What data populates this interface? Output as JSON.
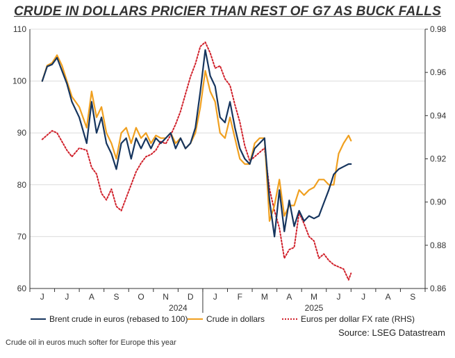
{
  "title": "CRUDE IN DOLLARS PRICIER THAN REST OF G7 AS BUCK FALLS",
  "source": "Source: LSEG Datastream",
  "caption": "Crude oil in euros much softer for Europe this year",
  "colors": {
    "euros": "#16355e",
    "dollars": "#f0a020",
    "fx": "#d0202a",
    "grid": "#dcdcdc",
    "axis": "#333333"
  },
  "chart_data": {
    "type": "line",
    "title": "CRUDE IN DOLLARS PRICIER THAN REST OF G7 AS BUCK FALLS",
    "x_months": [
      "J",
      "J",
      "A",
      "S",
      "O",
      "N",
      "D",
      "J",
      "F",
      "M",
      "A",
      "M",
      "J",
      "J",
      "A",
      "S"
    ],
    "x_years": [
      {
        "label": "2024",
        "month_index": 6
      },
      {
        "label": "2025",
        "month_index": 11.5
      }
    ],
    "y_left": {
      "min": 60,
      "max": 110,
      "ticks": [
        60,
        70,
        80,
        90,
        100,
        110
      ]
    },
    "y_right": {
      "min": 0.86,
      "max": 0.98,
      "ticks": [
        "0.86",
        "0.88",
        "0.90",
        "0.92",
        "0.94",
        "0.96",
        "0.98"
      ]
    },
    "legend": [
      "Brent crude in euros (rebased to 100)",
      "Crude in dollars",
      "Euros per dollar FX rate (RHS)"
    ],
    "series": [
      {
        "name": "Brent crude in euros (rebased to 100)",
        "axis": "left",
        "style": "solid",
        "x": [
          0,
          0.2,
          0.4,
          0.6,
          0.8,
          1.0,
          1.2,
          1.5,
          1.8,
          2.0,
          2.2,
          2.4,
          2.6,
          2.8,
          3.0,
          3.2,
          3.4,
          3.6,
          3.8,
          4.0,
          4.2,
          4.4,
          4.6,
          4.8,
          5.0,
          5.2,
          5.4,
          5.6,
          5.8,
          6.0,
          6.2,
          6.4,
          6.6,
          6.8,
          7.0,
          7.2,
          7.4,
          7.6,
          7.8,
          8.0,
          8.2,
          8.4,
          8.6,
          8.8,
          9.0,
          9.2,
          9.4,
          9.6,
          9.8,
          10.0,
          10.2,
          10.4,
          10.6,
          10.8,
          11.0,
          11.2,
          11.4,
          11.6,
          11.8,
          12.0,
          12.2,
          12.4,
          12.5
        ],
        "values": [
          100,
          102.8,
          103.2,
          104.5,
          102,
          99.5,
          96,
          93,
          88,
          96,
          90,
          93,
          88,
          86,
          83,
          88,
          89,
          85,
          89,
          87,
          89,
          87,
          89,
          88,
          89,
          90,
          87,
          89,
          87,
          88,
          91,
          98,
          106,
          101,
          99,
          93,
          92,
          96,
          91,
          87,
          85,
          84,
          87,
          88,
          89,
          77,
          70,
          79,
          71,
          77,
          72,
          75,
          73,
          74,
          73.5,
          74,
          76.5,
          79,
          82,
          83,
          83.5,
          84,
          84
        ]
      },
      {
        "name": "Crude in dollars",
        "axis": "left",
        "style": "solid",
        "x": [
          0,
          0.2,
          0.4,
          0.6,
          0.8,
          1.0,
          1.2,
          1.5,
          1.8,
          2.0,
          2.2,
          2.4,
          2.6,
          2.8,
          3.0,
          3.2,
          3.4,
          3.6,
          3.8,
          4.0,
          4.2,
          4.4,
          4.6,
          4.8,
          5.0,
          5.2,
          5.4,
          5.6,
          5.8,
          6.0,
          6.2,
          6.4,
          6.6,
          6.8,
          7.0,
          7.2,
          7.4,
          7.6,
          7.8,
          8.0,
          8.2,
          8.4,
          8.6,
          8.8,
          9.0,
          9.2,
          9.4,
          9.6,
          9.8,
          10.0,
          10.2,
          10.4,
          10.6,
          10.8,
          11.0,
          11.2,
          11.4,
          11.6,
          11.8,
          12.0,
          12.2,
          12.4,
          12.5
        ],
        "values": [
          100,
          103,
          103.5,
          105,
          103,
          100,
          97,
          95,
          91,
          98,
          93,
          95,
          90,
          88,
          85,
          90,
          91,
          88,
          91,
          89,
          90,
          88,
          89.5,
          89,
          89,
          90,
          88,
          89,
          87,
          88,
          90,
          95,
          102,
          98,
          96,
          90,
          89,
          93,
          89,
          85,
          84,
          84,
          88,
          89,
          89,
          73,
          76,
          81,
          74,
          76,
          76,
          79,
          78,
          79,
          79.5,
          81,
          81,
          80,
          80,
          86,
          88,
          89.5,
          88.5
        ]
      },
      {
        "name": "Euros per dollar FX rate (RHS)",
        "axis": "right",
        "style": "dotted",
        "x": [
          0,
          0.2,
          0.4,
          0.6,
          0.8,
          1.0,
          1.2,
          1.5,
          1.8,
          2.0,
          2.2,
          2.4,
          2.6,
          2.8,
          3.0,
          3.2,
          3.4,
          3.6,
          3.8,
          4.0,
          4.2,
          4.4,
          4.6,
          4.8,
          5.0,
          5.2,
          5.4,
          5.6,
          5.8,
          6.0,
          6.2,
          6.4,
          6.6,
          6.8,
          7.0,
          7.2,
          7.4,
          7.6,
          7.8,
          8.0,
          8.2,
          8.4,
          8.6,
          8.8,
          9.0,
          9.2,
          9.4,
          9.6,
          9.8,
          10.0,
          10.2,
          10.4,
          10.6,
          10.8,
          11.0,
          11.2,
          11.4,
          11.6,
          11.8,
          12.0,
          12.2,
          12.4,
          12.5
        ],
        "values": [
          0.929,
          0.931,
          0.933,
          0.932,
          0.928,
          0.924,
          0.921,
          0.925,
          0.924,
          0.916,
          0.913,
          0.904,
          0.901,
          0.906,
          0.898,
          0.896,
          0.902,
          0.908,
          0.914,
          0.918,
          0.921,
          0.922,
          0.924,
          0.928,
          0.927,
          0.931,
          0.936,
          0.942,
          0.95,
          0.958,
          0.964,
          0.972,
          0.974,
          0.969,
          0.962,
          0.963,
          0.957,
          0.954,
          0.945,
          0.937,
          0.926,
          0.919,
          0.921,
          0.923,
          0.925,
          0.906,
          0.896,
          0.888,
          0.874,
          0.878,
          0.879,
          0.895,
          0.89,
          0.884,
          0.882,
          0.874,
          0.876,
          0.873,
          0.871,
          0.87,
          0.869,
          0.864,
          0.867
        ]
      }
    ]
  }
}
